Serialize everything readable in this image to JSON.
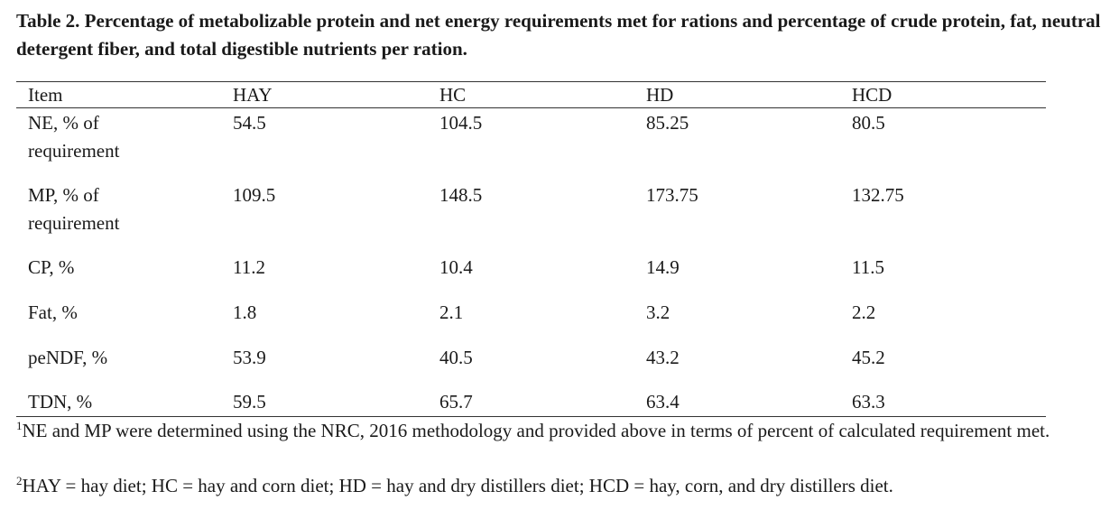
{
  "caption": "Table 2. Percentage of metabolizable protein and net energy requirements met for rations and percentage of crude protein, fat, neutral detergent fiber, and total digestible nutrients per ration.",
  "table": {
    "headers": [
      "Item",
      "HAY",
      "HC",
      "HD",
      "HCD"
    ],
    "rows": [
      [
        "NE, % of requirement",
        "54.5",
        "104.5",
        "85.25",
        "80.5"
      ],
      [
        "MP, % of requirement",
        "109.5",
        "148.5",
        "173.75",
        "132.75"
      ],
      [
        "CP, %",
        "11.2",
        "10.4",
        "14.9",
        "11.5"
      ],
      [
        "Fat, %",
        "1.8",
        "2.1",
        "3.2",
        "2.2"
      ],
      [
        "peNDF, %",
        "53.9",
        "40.5",
        "43.2",
        "45.2"
      ],
      [
        "TDN, %",
        "59.5",
        "65.7",
        "63.4",
        "63.3"
      ]
    ]
  },
  "footnotes": [
    {
      "mark": "1",
      "text": "NE and MP were determined using the NRC, 2016 methodology and provided above in terms of percent of calculated requirement met."
    },
    {
      "mark": "2",
      "text": "HAY = hay diet; HC = hay and corn diet; HD = hay and dry distillers diet; HCD = hay, corn, and dry distillers diet."
    }
  ]
}
